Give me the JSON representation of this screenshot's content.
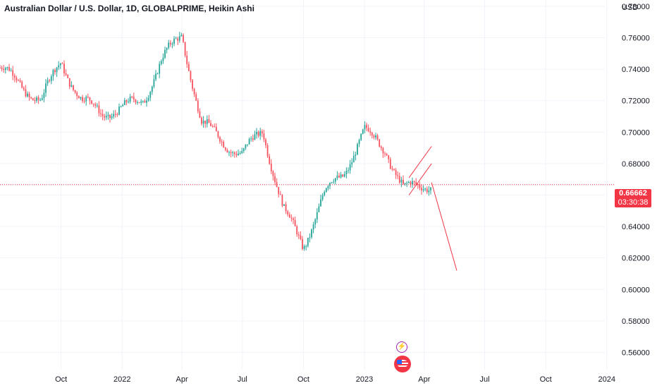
{
  "header": {
    "title": "Australian Dollar / U.S. Dollar, 1D, GLOBALPRIME, Heikin Ashi",
    "currency": "USD"
  },
  "price_badge": {
    "price": "0.66662",
    "countdown": "03:30:38"
  },
  "colors": {
    "up": "#26a69a",
    "down": "#f7525f",
    "grid": "#f0f3fa",
    "price_line": "#f23645",
    "drawing": "#f23645"
  },
  "chart_data": {
    "type": "heikin-ashi candlestick",
    "y_axis": {
      "label": "USD",
      "ticks": [
        0.56,
        0.58,
        0.6,
        0.62,
        0.64,
        0.66,
        0.68,
        0.7,
        0.72,
        0.74,
        0.76,
        0.78
      ],
      "ylim": [
        0.549,
        0.784
      ]
    },
    "x_axis": {
      "ticks": [
        "Oct",
        "2022",
        "Apr",
        "Jul",
        "Oct",
        "2023",
        "Apr",
        "Jul",
        "Oct",
        "2024"
      ]
    },
    "current_price": 0.66662,
    "price_path_approx": [
      [
        "2021-07",
        0.741
      ],
      [
        "2021-08",
        0.73
      ],
      [
        "2021-09",
        0.72
      ],
      [
        "2021-10",
        0.745
      ],
      [
        "2021-11",
        0.72
      ],
      [
        "2021-12",
        0.712
      ],
      [
        "2022-01",
        0.715
      ],
      [
        "2022-02",
        0.72
      ],
      [
        "2022-03",
        0.745
      ],
      [
        "2022-04",
        0.762
      ],
      [
        "2022-05",
        0.705
      ],
      [
        "2022-06",
        0.695
      ],
      [
        "2022-07",
        0.685
      ],
      [
        "2022-08",
        0.702
      ],
      [
        "2022-09",
        0.65
      ],
      [
        "2022-10",
        0.628
      ],
      [
        "2022-11",
        0.66
      ],
      [
        "2022-12",
        0.675
      ],
      [
        "2023-01",
        0.7
      ],
      [
        "2023-02",
        0.69
      ],
      [
        "2023-03",
        0.663
      ],
      [
        "2023-04",
        0.667
      ]
    ],
    "drawings": [
      {
        "type": "channel",
        "from": [
          "2023-03-09",
          0.66
        ],
        "to": [
          "2023-04-12",
          0.68
        ]
      },
      {
        "type": "projection-line",
        "from": [
          "2023-04-12",
          0.668
        ],
        "to": [
          "2023-05-20",
          0.612
        ]
      }
    ],
    "events": [
      "earnings-lightning-icon",
      "us-flag-economic-event-icon"
    ]
  }
}
